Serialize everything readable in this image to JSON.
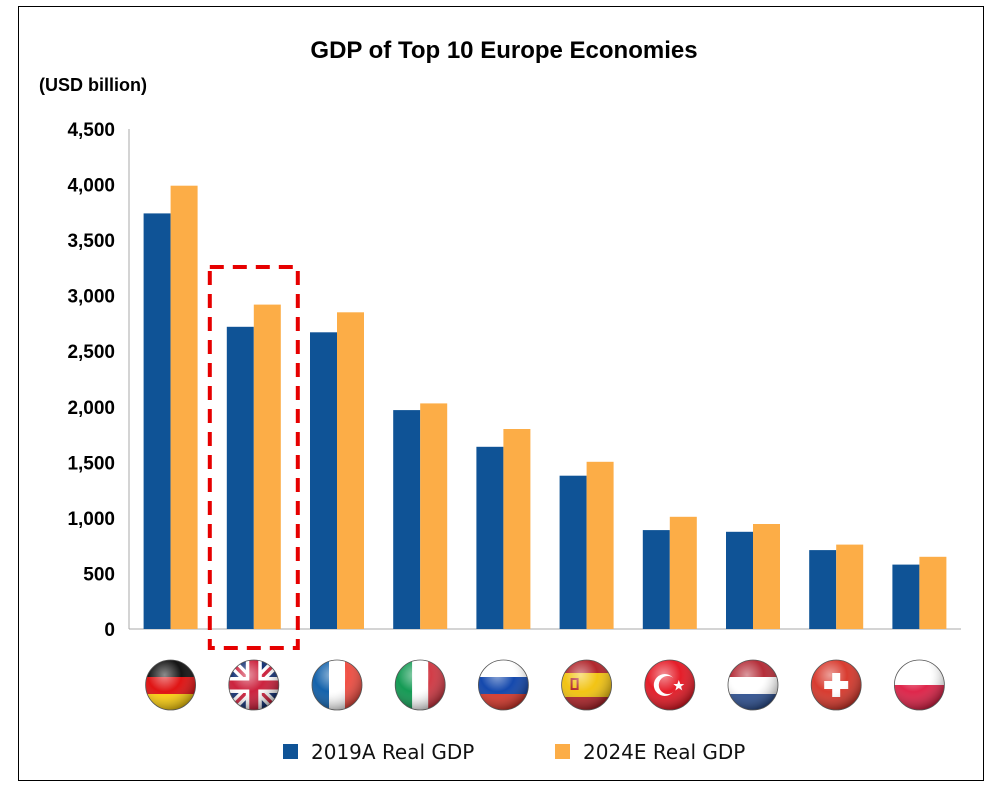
{
  "chart_data": {
    "type": "bar",
    "title": "GDP of Top 10 Europe Economies",
    "ylabel": "(USD billion)",
    "ylim": [
      0,
      4500
    ],
    "yticks": [
      0,
      500,
      1000,
      1500,
      2000,
      2500,
      3000,
      3500,
      4000,
      4500
    ],
    "ytick_labels": [
      "0",
      "500",
      "1,000",
      "1,500",
      "2,000",
      "2,500",
      "3,000",
      "3,500",
      "4,000",
      "4,500"
    ],
    "categories": [
      "germany-flag-icon",
      "uk-flag-icon",
      "france-flag-icon",
      "italy-flag-icon",
      "russia-flag-icon",
      "spain-flag-icon",
      "turkey-flag-icon",
      "netherlands-flag-icon",
      "switzerland-flag-icon",
      "poland-flag-icon"
    ],
    "series": [
      {
        "name": "2019A Real GDP",
        "color": "#0F5396",
        "values": [
          3740,
          2720,
          2670,
          1970,
          1640,
          1380,
          890,
          875,
          710,
          580
        ]
      },
      {
        "name": "2024E Real GDP",
        "color": "#FCAD47",
        "values": [
          3990,
          2920,
          2850,
          2030,
          1800,
          1505,
          1010,
          945,
          760,
          650
        ]
      }
    ],
    "highlight": {
      "category_index": 1,
      "color": "#E60000",
      "style": "dashed"
    },
    "grid": false,
    "legend_position": "bottom"
  }
}
